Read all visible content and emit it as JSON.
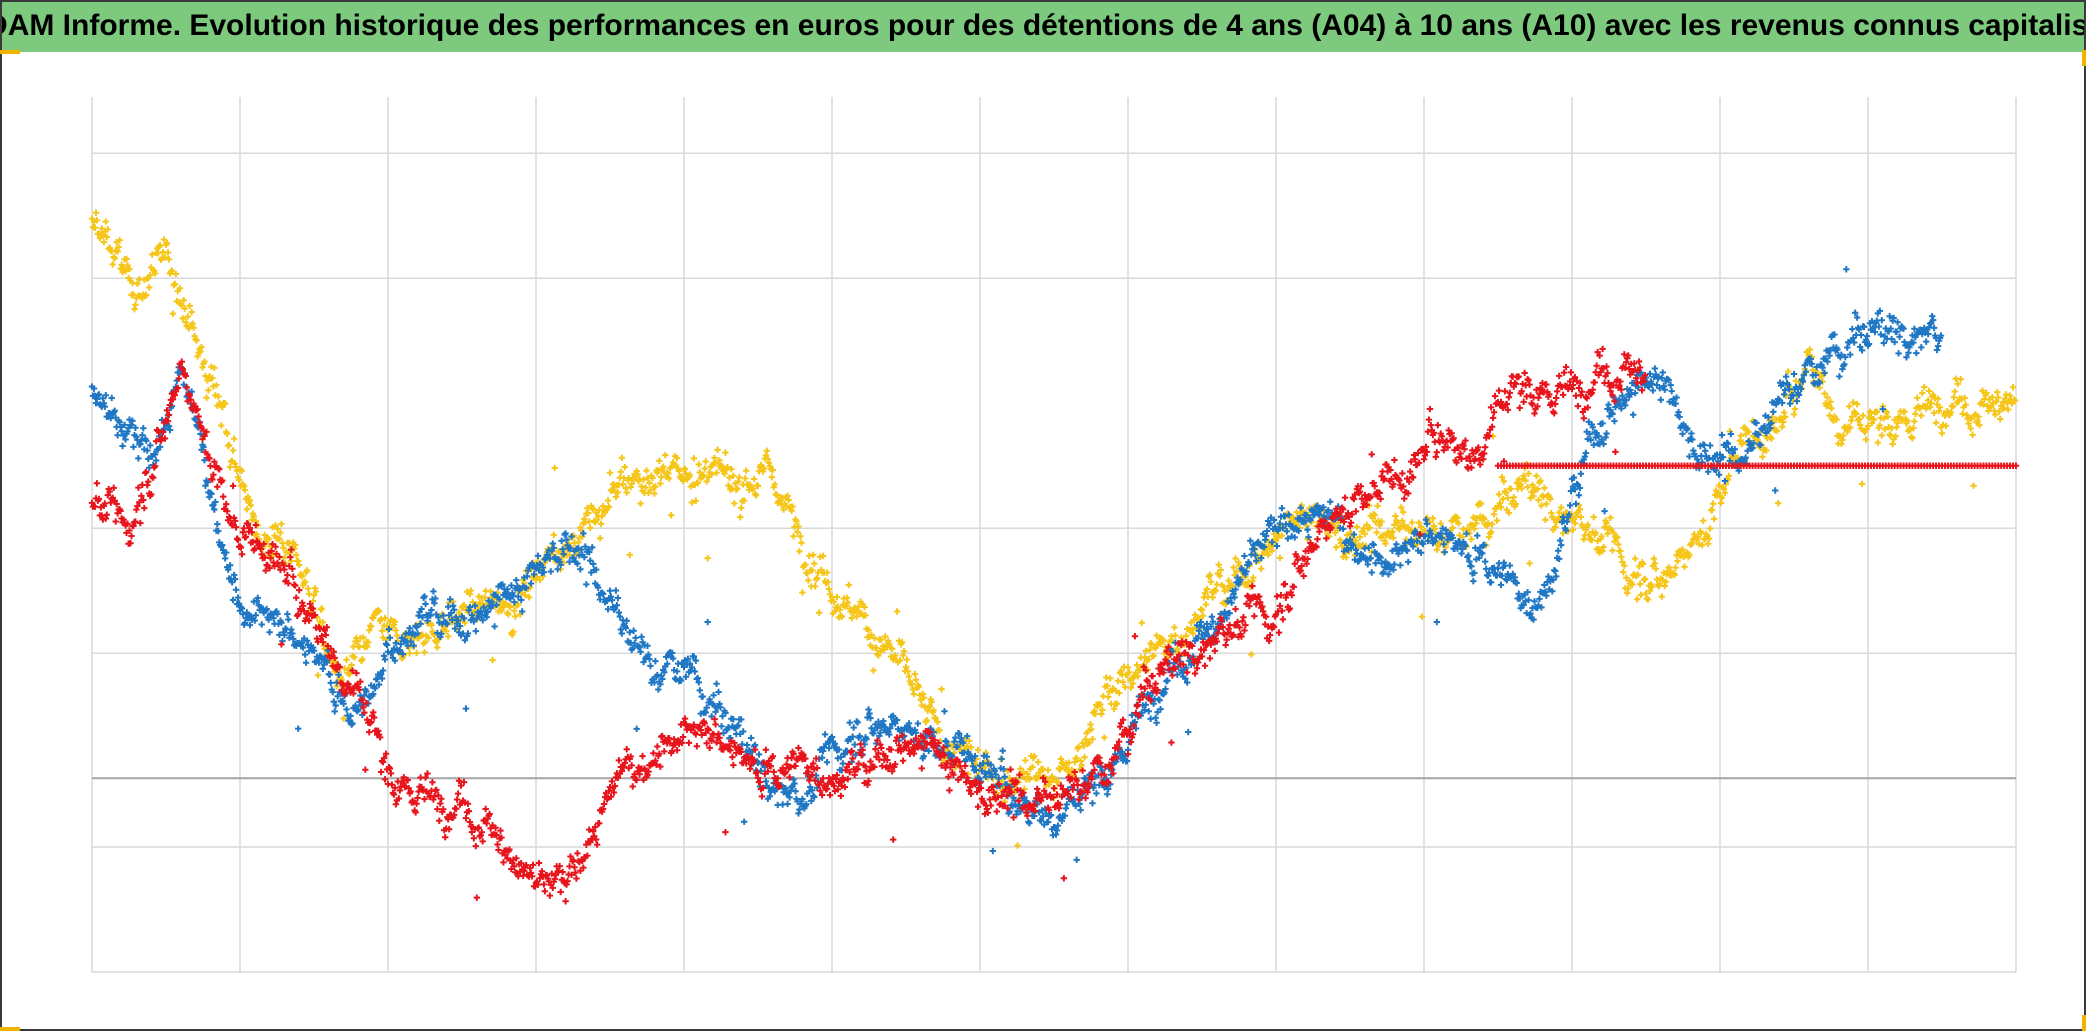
{
  "title": "ADAM Informe. Evolution historique des performances en euros pour des détentions de 4 ans (A04) à 10 ans (A10) avec les revenus connus capitalisés",
  "colors": {
    "title_background": "#7dc97d",
    "frame": "#3a3a3a",
    "corner_accent": "#f0b400",
    "grid": "#d9d9d9",
    "zero_line": "#a6a6a6"
  },
  "chart_data": {
    "type": "scatter",
    "marker": "plus",
    "title": "ADAM Informe. Evolution historique des performances en euros pour des détentions de 4 ans (A04) à 10 ans (A10) avec les revenus connus capitalisés",
    "xlabel": "",
    "ylabel": "",
    "x_tick_labels": [],
    "y_tick_labels": [],
    "grid": true,
    "legend": "none",
    "xlim": [
      0,
      13
    ],
    "ylim": [
      -1.55,
      5.45
    ],
    "x_gridlines": [
      0,
      1,
      2,
      3,
      4,
      5,
      6,
      7,
      8,
      9,
      10,
      11,
      12,
      13
    ],
    "y_gridlines": [
      -1.55,
      -0.55,
      0,
      1,
      2,
      4,
      5,
      6
    ],
    "reference_line_y": 0,
    "series": [
      {
        "color": "#f5c518",
        "points": [
          [
            0,
            4.4
          ],
          [
            0.3,
            3.9
          ],
          [
            0.5,
            4.2
          ],
          [
            0.7,
            3.5
          ],
          [
            0.9,
            2.9
          ],
          [
            1.1,
            2.0
          ],
          [
            1.3,
            1.9
          ],
          [
            1.5,
            1.3
          ],
          [
            1.7,
            0.7
          ],
          [
            1.9,
            1.2
          ],
          [
            2.2,
            1.1
          ],
          [
            2.5,
            1.3
          ],
          [
            2.9,
            1.5
          ],
          [
            3.2,
            1.9
          ],
          [
            3.6,
            2.3
          ],
          [
            4.0,
            2.5
          ],
          [
            4.3,
            2.4
          ],
          [
            4.6,
            2.4
          ],
          [
            4.9,
            1.7
          ],
          [
            5.2,
            1.3
          ],
          [
            5.5,
            0.8
          ],
          [
            5.8,
            0.2
          ],
          [
            6.2,
            0.0
          ],
          [
            6.6,
            0.1
          ],
          [
            6.8,
            0.5
          ],
          [
            7.0,
            0.8
          ],
          [
            7.3,
            1.1
          ],
          [
            7.6,
            1.5
          ],
          [
            7.9,
            1.8
          ],
          [
            8.2,
            2.2
          ],
          [
            8.5,
            1.9
          ],
          [
            8.8,
            2.0
          ],
          [
            9.1,
            1.9
          ],
          [
            9.4,
            2.0
          ],
          [
            9.7,
            2.3
          ],
          [
            10.0,
            2.1
          ],
          [
            10.3,
            1.8
          ],
          [
            10.6,
            1.6
          ],
          [
            10.9,
            2.0
          ],
          [
            11.1,
            2.6
          ],
          [
            11.4,
            2.8
          ],
          [
            11.6,
            3.4
          ],
          [
            11.8,
            2.9
          ],
          [
            12.0,
            2.8
          ],
          [
            12.3,
            2.9
          ],
          [
            12.5,
            3.1
          ],
          [
            12.8,
            3.0
          ],
          [
            13.0,
            3.15
          ]
        ]
      },
      {
        "color": "#1f77c4",
        "points": [
          [
            0,
            3.05
          ],
          [
            0.2,
            2.7
          ],
          [
            0.4,
            2.6
          ],
          [
            0.6,
            3.3
          ],
          [
            0.8,
            2.4
          ],
          [
            1.0,
            1.4
          ],
          [
            1.3,
            1.1
          ],
          [
            1.6,
            0.9
          ],
          [
            1.7,
            0.6
          ],
          [
            1.9,
            0.6
          ],
          [
            2.0,
            1.1
          ],
          [
            2.3,
            1.3
          ],
          [
            2.6,
            1.3
          ],
          [
            2.9,
            1.6
          ],
          [
            3.2,
            1.9
          ],
          [
            3.4,
            1.6
          ],
          [
            3.6,
            1.2
          ],
          [
            3.8,
            0.8
          ],
          [
            4.0,
            0.9
          ],
          [
            4.2,
            0.5
          ],
          [
            4.5,
            0.1
          ],
          [
            4.8,
            -0.2
          ],
          [
            5.1,
            0.4
          ],
          [
            5.4,
            0.45
          ],
          [
            5.7,
            0.3
          ],
          [
            6.0,
            0.1
          ],
          [
            6.3,
            -0.2
          ],
          [
            6.6,
            -0.25
          ],
          [
            6.9,
            0.1
          ],
          [
            7.2,
            0.8
          ],
          [
            7.6,
            1.3
          ],
          [
            7.9,
            1.8
          ],
          [
            8.2,
            2.2
          ],
          [
            8.5,
            2.0
          ],
          [
            8.8,
            1.7
          ],
          [
            9.1,
            1.9
          ],
          [
            9.4,
            1.8
          ],
          [
            9.7,
            1.4
          ],
          [
            9.9,
            1.7
          ],
          [
            10.1,
            2.7
          ],
          [
            10.3,
            3.0
          ],
          [
            10.6,
            3.3
          ],
          [
            10.8,
            2.7
          ],
          [
            11.0,
            2.5
          ],
          [
            11.2,
            2.6
          ],
          [
            11.4,
            3.0
          ],
          [
            11.7,
            3.3
          ],
          [
            12.0,
            3.5
          ],
          [
            12.2,
            3.55
          ],
          [
            12.4,
            3.6
          ],
          [
            12.5,
            3.5
          ]
        ]
      },
      {
        "color": "#e8141c",
        "points": [
          [
            0,
            2.3
          ],
          [
            0.2,
            2.0
          ],
          [
            0.4,
            2.5
          ],
          [
            0.6,
            3.3
          ],
          [
            0.8,
            2.6
          ],
          [
            1.0,
            1.9
          ],
          [
            1.2,
            1.8
          ],
          [
            1.5,
            1.3
          ],
          [
            1.7,
            0.9
          ],
          [
            1.9,
            0.4
          ],
          [
            2.0,
            0.0
          ],
          [
            2.2,
            -0.1
          ],
          [
            2.5,
            -0.15
          ],
          [
            2.8,
            -0.5
          ],
          [
            3.0,
            -0.9
          ],
          [
            3.2,
            -0.9
          ],
          [
            3.4,
            -0.3
          ],
          [
            3.6,
            0.1
          ],
          [
            3.9,
            0.35
          ],
          [
            4.2,
            0.25
          ],
          [
            4.5,
            0.1
          ],
          [
            4.8,
            0.1
          ],
          [
            5.1,
            0.0
          ],
          [
            5.4,
            0.25
          ],
          [
            5.7,
            0.3
          ],
          [
            6.0,
            -0.1
          ],
          [
            6.3,
            -0.2
          ],
          [
            6.6,
            -0.15
          ],
          [
            6.9,
            0.1
          ],
          [
            7.1,
            0.6
          ],
          [
            7.4,
            1.0
          ],
          [
            7.7,
            1.2
          ],
          [
            8.0,
            1.4
          ],
          [
            8.3,
            2.0
          ],
          [
            8.6,
            2.3
          ],
          [
            8.9,
            2.4
          ],
          [
            9.1,
            2.8
          ],
          [
            9.3,
            2.6
          ],
          [
            9.6,
            3.1
          ],
          [
            9.9,
            3.1
          ],
          [
            10.2,
            3.3
          ],
          [
            10.5,
            3.3
          ]
        ],
        "flat_segment": {
          "x_from": 9.5,
          "x_to": 13.0,
          "y": 2.5
        }
      }
    ]
  }
}
